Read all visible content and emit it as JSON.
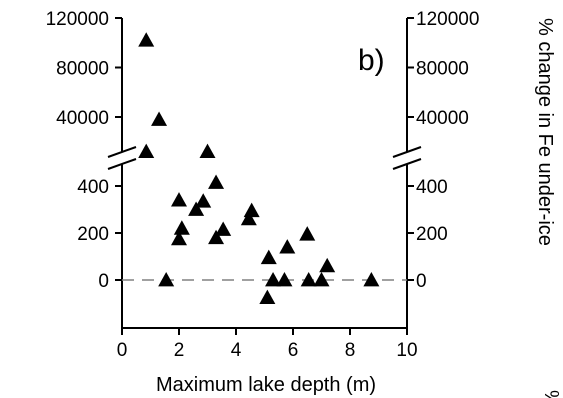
{
  "chart_data": {
    "type": "scatter",
    "panel_label": "b)",
    "xlabel": "Maximum lake depth (m)",
    "ylabel_right": "% change in Fe under-ice",
    "partial_text_bottom_right": "%",
    "xlim": [
      0,
      10
    ],
    "x_ticks": [
      "0",
      "2",
      "4",
      "6",
      "8",
      "10"
    ],
    "y_axis_break": true,
    "ylim_lower": [
      -100,
      500
    ],
    "ylim_upper": [
      10000,
      120000
    ],
    "y_ticks_lower": [
      "0",
      "200",
      "400"
    ],
    "y_ticks_upper": [
      "40000",
      "80000",
      "120000"
    ],
    "y_ticks_right_lower": [
      "0",
      "200",
      "400"
    ],
    "y_ticks_right_upper": [
      "40000",
      "80000",
      "120000"
    ],
    "reference_line": {
      "y": 0,
      "style": "dashed",
      "color": "#808080"
    },
    "marker": {
      "shape": "triangle",
      "color": "#000000"
    },
    "points": [
      {
        "x": 0.85,
        "y": 102000
      },
      {
        "x": 1.3,
        "y": 38000
      },
      {
        "x": 0.85,
        "y": 12000
      },
      {
        "x": 3.0,
        "y": 12000
      },
      {
        "x": 1.55,
        "y": 0
      },
      {
        "x": 2.0,
        "y": 340
      },
      {
        "x": 2.1,
        "y": 220
      },
      {
        "x": 2.0,
        "y": 175
      },
      {
        "x": 2.6,
        "y": 300
      },
      {
        "x": 2.85,
        "y": 335
      },
      {
        "x": 3.3,
        "y": 415
      },
      {
        "x": 3.3,
        "y": 180
      },
      {
        "x": 3.55,
        "y": 215
      },
      {
        "x": 4.45,
        "y": 260
      },
      {
        "x": 4.55,
        "y": 295
      },
      {
        "x": 5.15,
        "y": 95
      },
      {
        "x": 5.1,
        "y": -75
      },
      {
        "x": 5.3,
        "y": 0
      },
      {
        "x": 5.7,
        "y": 0
      },
      {
        "x": 5.8,
        "y": 140
      },
      {
        "x": 6.5,
        "y": 195
      },
      {
        "x": 6.55,
        "y": 0
      },
      {
        "x": 7.0,
        "y": 0
      },
      {
        "x": 7.2,
        "y": 60
      },
      {
        "x": 8.75,
        "y": 0
      }
    ]
  }
}
